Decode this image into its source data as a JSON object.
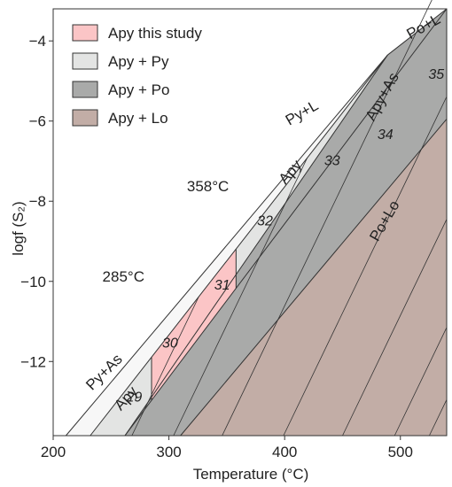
{
  "chart_data": {
    "type": "area",
    "title": "",
    "xlabel": "Temperature (°C)",
    "ylabel": "logf (S₂)",
    "xlim": [
      200,
      540
    ],
    "ylim": [
      -13.85,
      -3.2
    ],
    "x_ticks": [
      200,
      300,
      400,
      500
    ],
    "y_ticks": [
      -4,
      -6,
      -8,
      -10,
      -12
    ],
    "legend": {
      "position": "top-left",
      "entries": [
        {
          "label": "Apy this study",
          "color": "#fbc5c6"
        },
        {
          "label": "Apy + Py",
          "color": "#e3e4e3"
        },
        {
          "label": "Apy + Po",
          "color": "#a9aaa9"
        },
        {
          "label": "Apy + Lo",
          "color": "#c2ada6"
        }
      ]
    },
    "colors": {
      "white_field": "#f7f7f7",
      "apy_py": "#e3e4e3",
      "apy_po": "#a9aaa9",
      "apy_lo": "#c2ada6",
      "apy_study": "#fbc5c6",
      "line": "#333333"
    },
    "boundaries": {
      "py_l_upper": [
        [
          211,
          -13.85
        ],
        [
          489,
          -4.35
        ]
      ],
      "py_as": [
        [
          232,
          -13.85
        ],
        [
          489,
          -4.35
        ]
      ],
      "py_po": [
        [
          262,
          -13.85
        ],
        [
          489,
          -4.35
        ]
      ],
      "apy_po_upper": [
        [
          489,
          -4.35
        ],
        [
          540,
          -3.2
        ]
      ],
      "as_boundary": [
        [
          262,
          -13.85
        ],
        [
          540,
          -3.2
        ]
      ],
      "po_lo": [
        [
          310,
          -13.85
        ],
        [
          540,
          -5.95
        ]
      ]
    },
    "isopleths": [
      {
        "label": "29",
        "x": 268
      },
      {
        "label": "30",
        "x": 304
      },
      {
        "label": "31",
        "x": 346
      },
      {
        "label": "32",
        "x": 399
      },
      {
        "label": "33",
        "x": 450
      },
      {
        "label": "34",
        "x": 495
      },
      {
        "label": "35",
        "x": 525
      }
    ],
    "study_range": {
      "x_min": 285,
      "x_max": 358
    },
    "temperature_labels": [
      {
        "text": "285°C",
        "x": 285,
        "y": -10.0
      },
      {
        "text": "358°C",
        "x": 358,
        "y": -7.75
      }
    ],
    "field_labels": [
      {
        "text": "Po+L",
        "x": 522,
        "y": -3.75,
        "rotate": -29
      },
      {
        "text": "Py+L",
        "x": 417,
        "y": -5.9,
        "rotate": -30
      },
      {
        "text": "Apy+As",
        "x": 488,
        "y": -5.45,
        "rotate": -61
      },
      {
        "text": "Apy",
        "x": 408,
        "y": -7.35,
        "rotate": -49
      },
      {
        "text": "Po+Lo",
        "x": 490,
        "y": -8.55,
        "rotate": -60
      },
      {
        "text": "Py+As",
        "x": 247,
        "y": -12.35,
        "rotate": -45
      },
      {
        "text": "Apy",
        "x": 266,
        "y": -13.0,
        "rotate": -48
      }
    ],
    "isopleth_label_positions": [
      {
        "text": "29",
        "x": 270,
        "y": -13.0
      },
      {
        "text": "30",
        "x": 301,
        "y": -11.65
      },
      {
        "text": "31",
        "x": 346,
        "y": -10.2
      },
      {
        "text": "32",
        "x": 383,
        "y": -8.6
      },
      {
        "text": "33",
        "x": 441,
        "y": -7.1
      },
      {
        "text": "34",
        "x": 487,
        "y": -6.45
      },
      {
        "text": "35",
        "x": 531,
        "y": -4.95
      }
    ]
  }
}
